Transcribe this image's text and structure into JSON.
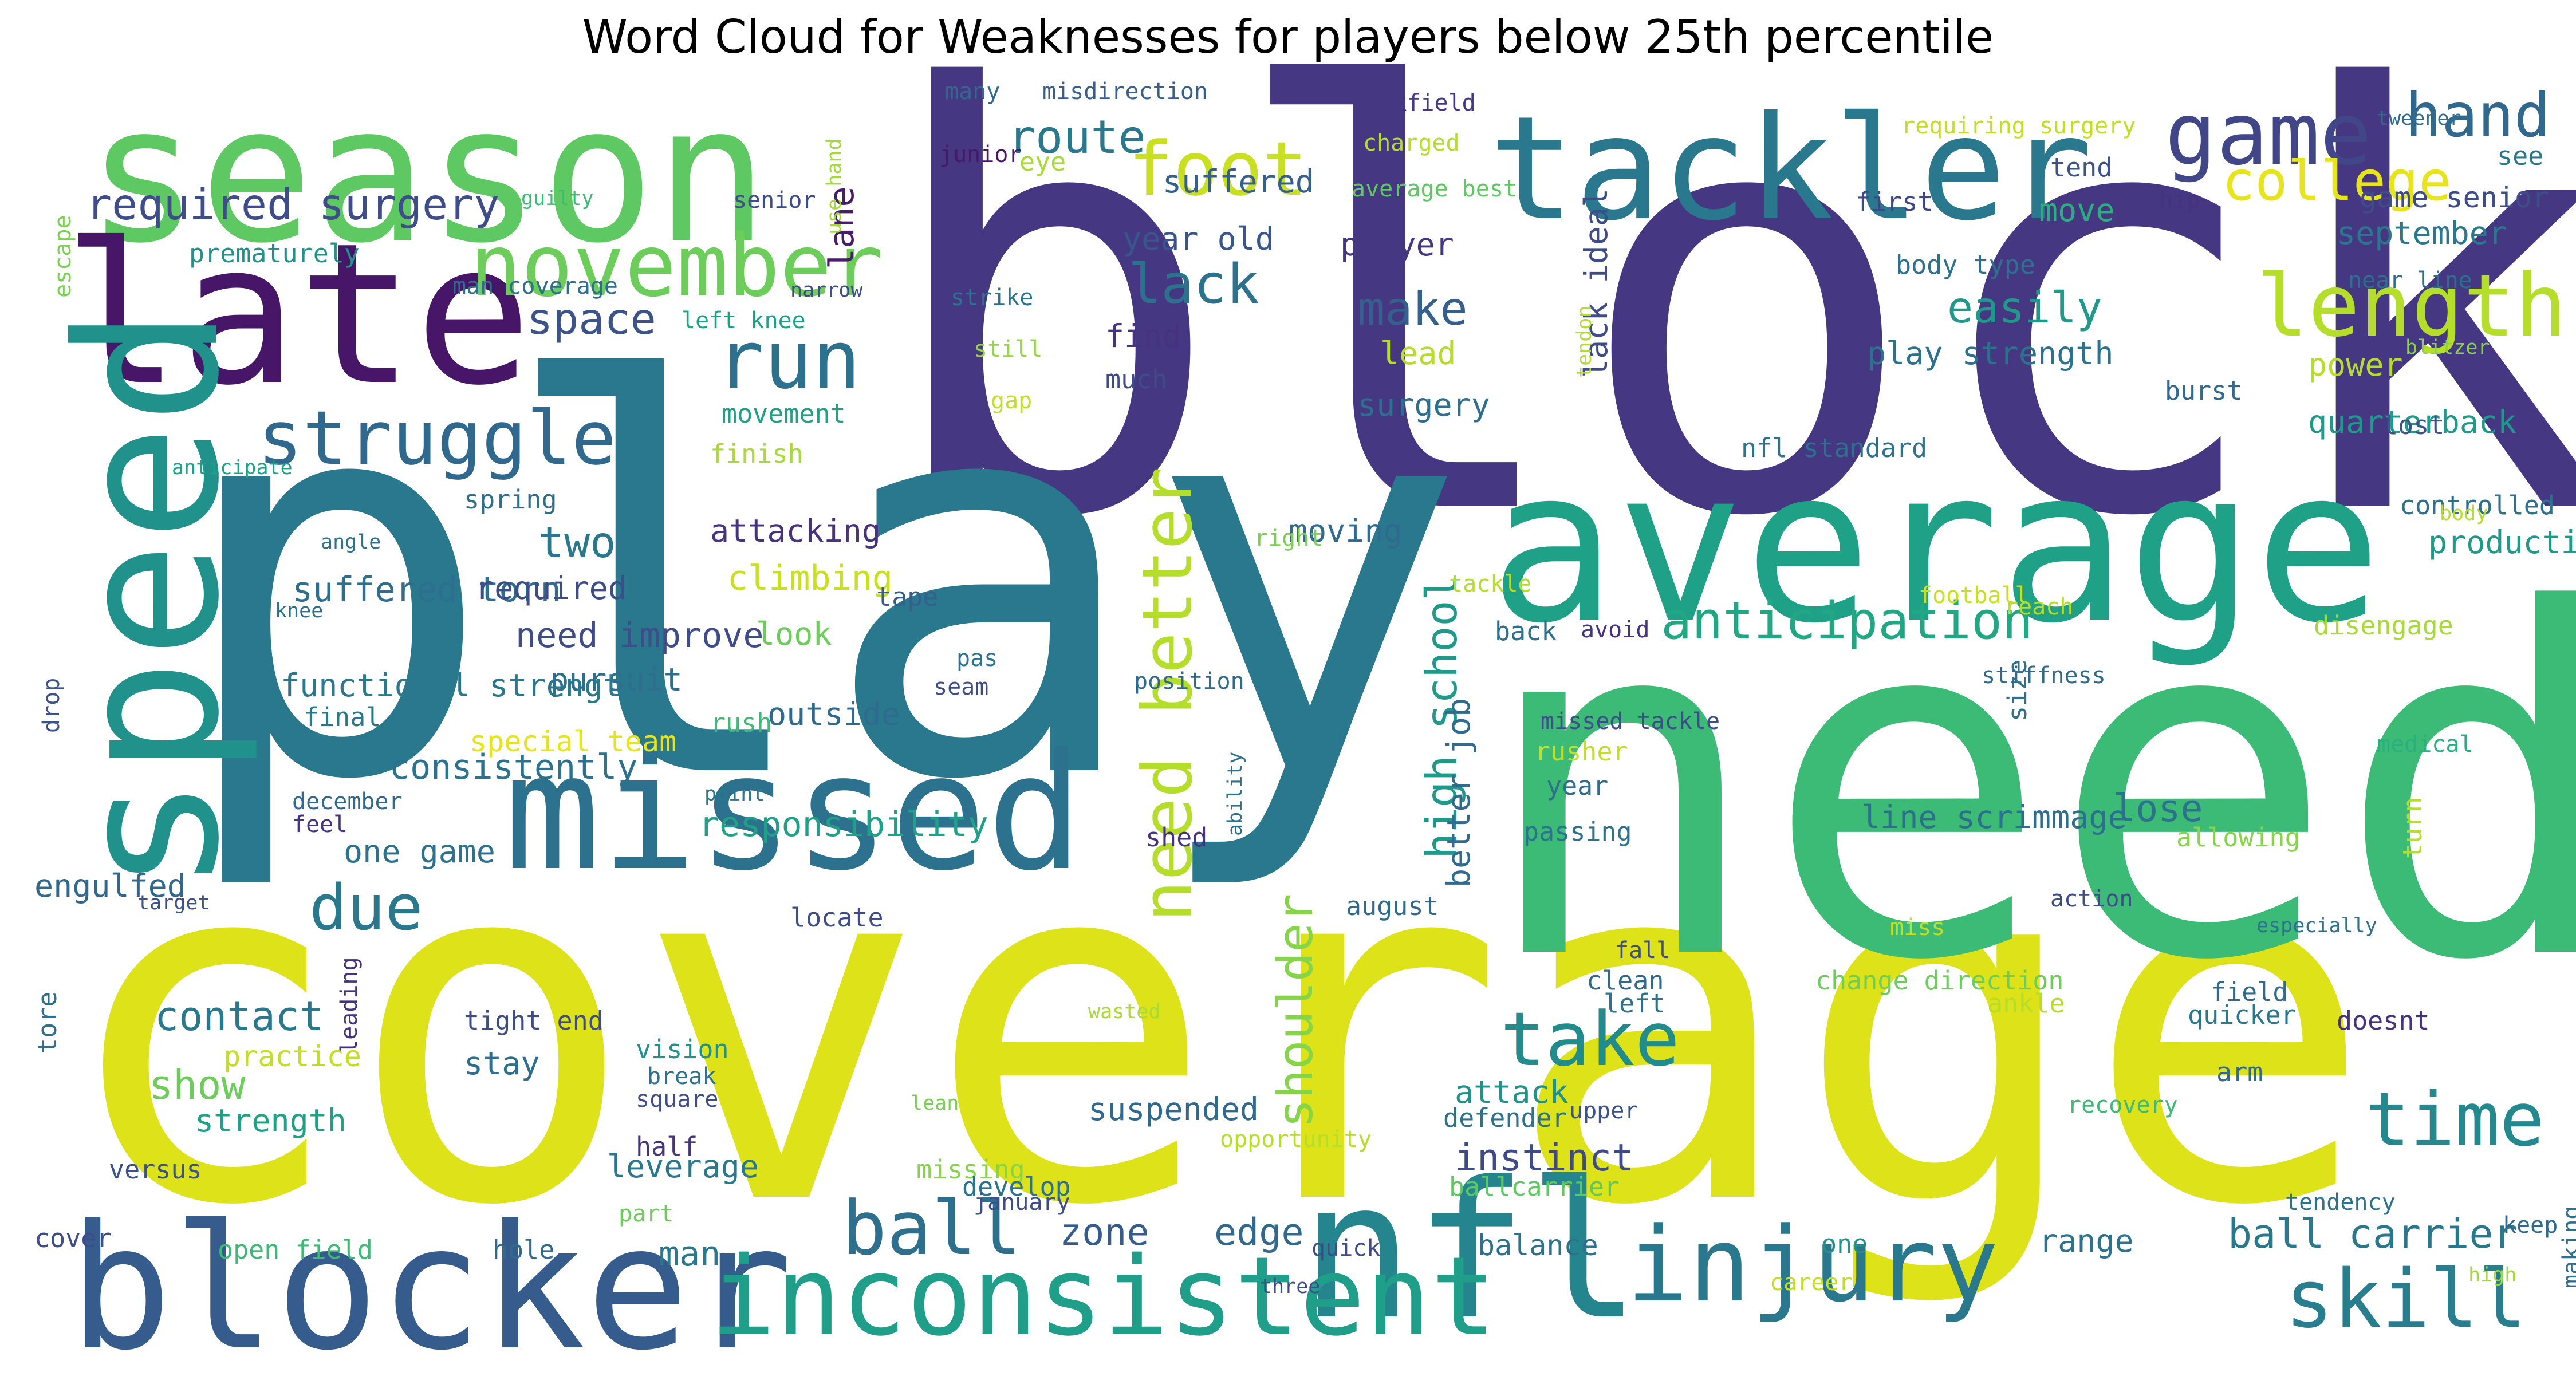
{
  "title": "Word Cloud for Weaknesses for players below 25th percentile",
  "words": [
    {
      "text": "block",
      "color": "#453781"
    },
    {
      "text": "play",
      "color": "#29788e"
    },
    {
      "text": "coverage",
      "color": "#dde318"
    },
    {
      "text": "need",
      "color": "#3bbb75"
    },
    {
      "text": "season",
      "color": "#5ec962"
    },
    {
      "text": "late",
      "color": "#481668"
    },
    {
      "text": "average",
      "color": "#1fa188"
    },
    {
      "text": "tackler",
      "color": "#2a788e"
    },
    {
      "text": "missed",
      "color": "#2c728e"
    },
    {
      "text": "blocker",
      "color": "#365c8d"
    },
    {
      "text": "nfl",
      "color": "#25858e"
    },
    {
      "text": "speed",
      "color": "#21918c"
    },
    {
      "text": "inconsistent",
      "color": "#1f9e89"
    },
    {
      "text": "injury",
      "color": "#2a788e"
    },
    {
      "text": "game",
      "color": "#404688"
    },
    {
      "text": "november",
      "color": "#6ccd5a"
    },
    {
      "text": "length",
      "color": "#b5de2b"
    },
    {
      "text": "foot",
      "color": "#c8e020"
    },
    {
      "text": "struggle",
      "color": "#31688e"
    },
    {
      "text": "run",
      "color": "#2c728e"
    },
    {
      "text": "take",
      "color": "#228c8d"
    },
    {
      "text": "time",
      "color": "#23898e"
    },
    {
      "text": "skill",
      "color": "#287d8e"
    },
    {
      "text": "ball",
      "color": "#2e6f8e"
    },
    {
      "text": "need better",
      "color": "#b5de2b"
    },
    {
      "text": "college",
      "color": "#e7e419"
    },
    {
      "text": "hand",
      "color": "#31688e"
    },
    {
      "text": "anticipation",
      "color": "#22a785"
    },
    {
      "text": "due",
      "color": "#2a788e"
    },
    {
      "text": "required surgery",
      "color": "#3e4c8a"
    },
    {
      "text": "route",
      "color": "#2a788e"
    },
    {
      "text": "lack",
      "color": "#2c728e"
    },
    {
      "text": "space",
      "color": "#3b528b"
    },
    {
      "text": "two",
      "color": "#2a788e"
    },
    {
      "text": "make",
      "color": "#355f8d"
    },
    {
      "text": "easily",
      "color": "#1f9a8a"
    },
    {
      "text": "shoulder",
      "color": "#86d549"
    },
    {
      "text": "consistently",
      "color": "#2c728e"
    },
    {
      "text": "high school",
      "color": "#1f9a8a"
    },
    {
      "text": "contact",
      "color": "#2a788e"
    },
    {
      "text": "show",
      "color": "#6ccd5a"
    },
    {
      "text": "ball carrier",
      "color": "#2a788e"
    },
    {
      "text": "zone",
      "color": "#365c8d"
    },
    {
      "text": "edge",
      "color": "#31688e"
    },
    {
      "text": "instinct",
      "color": "#3e4a89"
    },
    {
      "text": "lose",
      "color": "#2c728e"
    },
    {
      "text": "year old",
      "color": "#39568c"
    },
    {
      "text": "suffered",
      "color": "#355f8d"
    },
    {
      "text": "eye",
      "color": "#a8db34"
    },
    {
      "text": "junior",
      "color": "#48186a"
    },
    {
      "text": "many",
      "color": "#31688e"
    },
    {
      "text": "misdirection",
      "color": "#355f8d"
    },
    {
      "text": "backfield",
      "color": "#453781"
    },
    {
      "text": "charged",
      "color": "#b5de2b"
    },
    {
      "text": "average best",
      "color": "#5ec962"
    },
    {
      "text": "requiring surgery",
      "color": "#c2df23"
    },
    {
      "text": "tweener",
      "color": "#306a8e"
    },
    {
      "text": "see",
      "color": "#2a788e"
    },
    {
      "text": "tend",
      "color": "#3b528b"
    },
    {
      "text": "move",
      "color": "#2ab07f"
    },
    {
      "text": "first",
      "color": "#3f4788"
    },
    {
      "text": "hip",
      "color": "#46327e"
    },
    {
      "text": "game senior",
      "color": "#3e4c8a"
    },
    {
      "text": "september",
      "color": "#2a788e"
    },
    {
      "text": "near line",
      "color": "#2e6e8e"
    },
    {
      "text": "body type",
      "color": "#2c728e"
    },
    {
      "text": "lane",
      "color": "#481b6d"
    },
    {
      "text": "senior",
      "color": "#3e4c8a"
    },
    {
      "text": "guilty",
      "color": "#3bbb75"
    },
    {
      "text": "use hand",
      "color": "#a2da37"
    },
    {
      "text": "escape",
      "color": "#7ad151"
    },
    {
      "text": "prematurely",
      "color": "#21918c"
    },
    {
      "text": "man coverage",
      "color": "#2e6e8e"
    },
    {
      "text": "narrow",
      "color": "#3e4c8a"
    },
    {
      "text": "left knee",
      "color": "#1fa188"
    },
    {
      "text": "player",
      "color": "#453781"
    },
    {
      "text": "strike",
      "color": "#2c728e"
    },
    {
      "text": "lack ideal",
      "color": "#3e4c8a"
    },
    {
      "text": "tendon",
      "color": "#b5de2b"
    },
    {
      "text": "still",
      "color": "#93d741"
    },
    {
      "text": "find",
      "color": "#46327e"
    },
    {
      "text": "much",
      "color": "#3e4c8a"
    },
    {
      "text": "lead",
      "color": "#b5de2b"
    },
    {
      "text": "play strength",
      "color": "#2c728e"
    },
    {
      "text": "blitzer",
      "color": "#86d549"
    },
    {
      "text": "power",
      "color": "#b5de2b"
    },
    {
      "text": "gap",
      "color": "#c2df23"
    },
    {
      "text": "surgery",
      "color": "#2e6e8e"
    },
    {
      "text": "burst",
      "color": "#31688e"
    },
    {
      "text": "quarterback",
      "color": "#1f9a8a"
    },
    {
      "text": "movement",
      "color": "#1fa188"
    },
    {
      "text": "finish",
      "color": "#a8db34"
    },
    {
      "text": "nfl standard",
      "color": "#2c728e"
    },
    {
      "text": "lost",
      "color": "#3b528b"
    },
    {
      "text": "anticipate",
      "color": "#1fa188"
    },
    {
      "text": "spring",
      "color": "#2e6e8e"
    },
    {
      "text": "controlled",
      "color": "#2c728e"
    },
    {
      "text": "body",
      "color": "#b5de2b"
    },
    {
      "text": "moving",
      "color": "#306a8e"
    },
    {
      "text": "angle",
      "color": "#2c728e"
    },
    {
      "text": "right",
      "color": "#7ad151"
    },
    {
      "text": "attacking",
      "color": "#46327e"
    },
    {
      "text": "production",
      "color": "#1f9a8a"
    },
    {
      "text": "tackle",
      "color": "#b5de2b"
    },
    {
      "text": "drop",
      "color": "#3b528b"
    },
    {
      "text": "suffered torn",
      "color": "#2e6e8e"
    },
    {
      "text": "knee",
      "color": "#2c728e"
    },
    {
      "text": "required",
      "color": "#3e4c8a"
    },
    {
      "text": "climbing",
      "color": "#c8e020"
    },
    {
      "text": "tape",
      "color": "#355f8d"
    },
    {
      "text": "football",
      "color": "#c8e020"
    },
    {
      "text": "reach",
      "color": "#b5de2b"
    },
    {
      "text": "disengage",
      "color": "#a8db34"
    },
    {
      "text": "need improve",
      "color": "#3e4c8a"
    },
    {
      "text": "back",
      "color": "#2e6e8e"
    },
    {
      "text": "avoid",
      "color": "#46327e"
    },
    {
      "text": "look",
      "color": "#6ccd5a"
    },
    {
      "text": "pursuit",
      "color": "#2e6e8e"
    },
    {
      "text": "pas",
      "color": "#2c728e"
    },
    {
      "text": "seam",
      "color": "#3e4c8a"
    },
    {
      "text": "position",
      "color": "#306a8e"
    },
    {
      "text": "stiffness",
      "color": "#31688e"
    },
    {
      "text": "size",
      "color": "#2c728e"
    },
    {
      "text": "turn",
      "color": "#b5de2b"
    },
    {
      "text": "functional strength",
      "color": "#2a788e"
    },
    {
      "text": "outside",
      "color": "#306a8e"
    },
    {
      "text": "final",
      "color": "#2a788e"
    },
    {
      "text": "rush",
      "color": "#3bbb75"
    },
    {
      "text": "special team",
      "color": "#e7e419"
    },
    {
      "text": "better job",
      "color": "#306a8e"
    },
    {
      "text": "missed tackle",
      "color": "#3e4c8a"
    },
    {
      "text": "rusher",
      "color": "#c2df23"
    },
    {
      "text": "medical",
      "color": "#2ab07f"
    },
    {
      "text": "december",
      "color": "#31688e"
    },
    {
      "text": "point",
      "color": "#2a788e"
    },
    {
      "text": "ability",
      "color": "#2c728e"
    },
    {
      "text": "year",
      "color": "#2e6e8e"
    },
    {
      "text": "feel",
      "color": "#46327e"
    },
    {
      "text": "responsibility",
      "color": "#1fa188"
    },
    {
      "text": "line scrimmage",
      "color": "#2e6e8e"
    },
    {
      "text": "passing",
      "color": "#2c728e"
    },
    {
      "text": "allowing",
      "color": "#86d549"
    },
    {
      "text": "one game",
      "color": "#2c728e"
    },
    {
      "text": "shed",
      "color": "#46327e"
    },
    {
      "text": "action",
      "color": "#3e4c8a"
    },
    {
      "text": "engulfed",
      "color": "#31688e"
    },
    {
      "text": "target",
      "color": "#3b528b"
    },
    {
      "text": "locate",
      "color": "#3e4c8a"
    },
    {
      "text": "august",
      "color": "#306a8e"
    },
    {
      "text": "miss",
      "color": "#c2df23"
    },
    {
      "text": "especially",
      "color": "#2c728e"
    },
    {
      "text": "fall",
      "color": "#3e4c8a"
    },
    {
      "text": "clean",
      "color": "#31688e"
    },
    {
      "text": "left",
      "color": "#2c728e"
    },
    {
      "text": "change direction",
      "color": "#6ccd5a"
    },
    {
      "text": "field",
      "color": "#306a8e"
    },
    {
      "text": "tore",
      "color": "#2e6e8e"
    },
    {
      "text": "tight end",
      "color": "#3e4c8a"
    },
    {
      "text": "leading",
      "color": "#46327e"
    },
    {
      "text": "wasted",
      "color": "#a8db34"
    },
    {
      "text": "ankle",
      "color": "#b5de2b"
    },
    {
      "text": "quicker",
      "color": "#2a788e"
    },
    {
      "text": "doesnt",
      "color": "#46327e"
    },
    {
      "text": "practice",
      "color": "#c2df23"
    },
    {
      "text": "stay",
      "color": "#2e6e8e"
    },
    {
      "text": "vision",
      "color": "#21918c"
    },
    {
      "text": "break",
      "color": "#2c728e"
    },
    {
      "text": "square",
      "color": "#3e4c8a"
    },
    {
      "text": "attack",
      "color": "#21918c"
    },
    {
      "text": "upper",
      "color": "#3b528b"
    },
    {
      "text": "arm",
      "color": "#306a8e"
    },
    {
      "text": "recovery",
      "color": "#3bbb75"
    },
    {
      "text": "strength",
      "color": "#1fa188"
    },
    {
      "text": "lean",
      "color": "#7ad151"
    },
    {
      "text": "suspended",
      "color": "#31688e"
    },
    {
      "text": "defender",
      "color": "#2c728e"
    },
    {
      "text": "opportunity",
      "color": "#b5de2b"
    },
    {
      "text": "versus",
      "color": "#3b528b"
    },
    {
      "text": "half",
      "color": "#46327e"
    },
    {
      "text": "missing",
      "color": "#86d549"
    },
    {
      "text": "develop",
      "color": "#2c728e"
    },
    {
      "text": "ballcarrier",
      "color": "#5ec962"
    },
    {
      "text": "keep",
      "color": "#31688e"
    },
    {
      "text": "cover",
      "color": "#3e4c8a"
    },
    {
      "text": "part",
      "color": "#6ccd5a"
    },
    {
      "text": "leverage",
      "color": "#2a788e"
    },
    {
      "text": "january",
      "color": "#3e4c8a"
    },
    {
      "text": "tendency",
      "color": "#2c728e"
    },
    {
      "text": "making",
      "color": "#2e6e8e"
    },
    {
      "text": "open field",
      "color": "#3bbb75"
    },
    {
      "text": "hole",
      "color": "#306a8e"
    },
    {
      "text": "man",
      "color": "#2a788e"
    },
    {
      "text": "quick",
      "color": "#3e4c8a"
    },
    {
      "text": "balance",
      "color": "#2c728e"
    },
    {
      "text": "one",
      "color": "#21918c"
    },
    {
      "text": "range",
      "color": "#2c728e"
    },
    {
      "text": "high",
      "color": "#a2da37"
    },
    {
      "text": "three",
      "color": "#3e4c8a"
    },
    {
      "text": "career",
      "color": "#c2df23"
    }
  ]
}
